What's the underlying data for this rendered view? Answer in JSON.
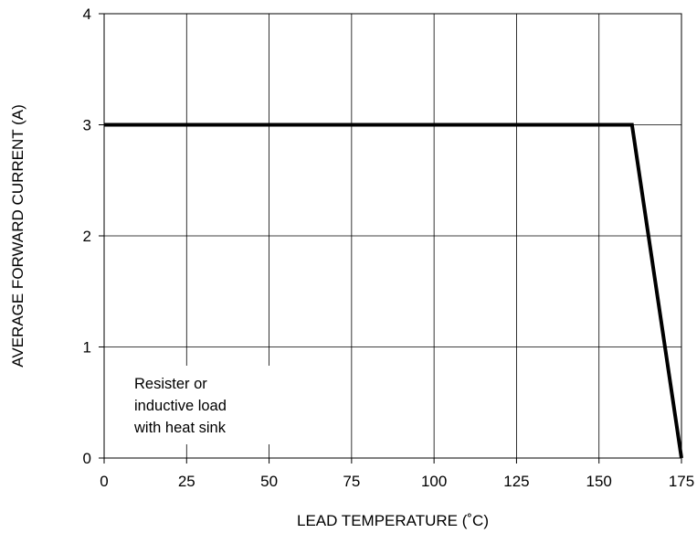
{
  "chart_data": {
    "type": "line",
    "xlabel": "LEAD TEMPERATURE (˚C)",
    "ylabel": "AVERAGE FORWARD CURRENT (A)",
    "xlim": [
      0,
      175
    ],
    "ylim": [
      0,
      4
    ],
    "xticks": [
      "0",
      "25",
      "50",
      "75",
      "100",
      "125",
      "150",
      "175"
    ],
    "yticks": [
      "0",
      "1",
      "2",
      "3",
      "4"
    ],
    "grid": true,
    "series": [
      {
        "x": [
          0,
          160,
          175
        ],
        "y": [
          3,
          3,
          0
        ]
      }
    ],
    "annotation_lines": [
      "Resister or",
      "inductive load",
      "with heat sink"
    ]
  }
}
